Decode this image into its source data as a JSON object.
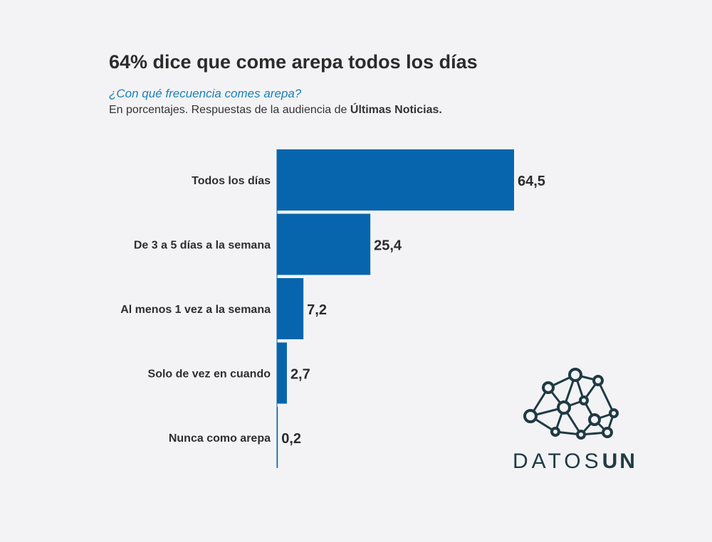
{
  "header": {
    "title": "64% dice que come arepa todos los días",
    "subtitle": "¿Con qué frecuencia comes arepa?",
    "note_prefix": "En porcentajes. Respuestas de la audiencia de ",
    "note_source": "Últimas Noticias."
  },
  "logo": {
    "word_light": "DATOS",
    "word_bold": "UN",
    "icon": "network-icon"
  },
  "colors": {
    "bar": "#0765ad",
    "accent": "#1a7fb8",
    "logo": "#1f3a44"
  },
  "chart_data": {
    "type": "bar",
    "orientation": "horizontal",
    "title": "64% dice que come arepa todos los días",
    "subtitle": "¿Con qué frecuencia comes arepa?",
    "xlabel": "",
    "ylabel": "",
    "xlim": [
      0,
      64.5
    ],
    "grid": false,
    "legend": "none",
    "categories": [
      "Todos los días",
      "De 3 a 5 días a la semana",
      "Al menos 1 vez a la semana",
      "Solo de vez en cuando",
      "Nunca como arepa"
    ],
    "values": [
      64.5,
      25.4,
      7.2,
      2.7,
      0.2
    ],
    "value_labels": [
      "64,5",
      "25,4",
      "7,2",
      "2,7",
      "0,2"
    ]
  }
}
